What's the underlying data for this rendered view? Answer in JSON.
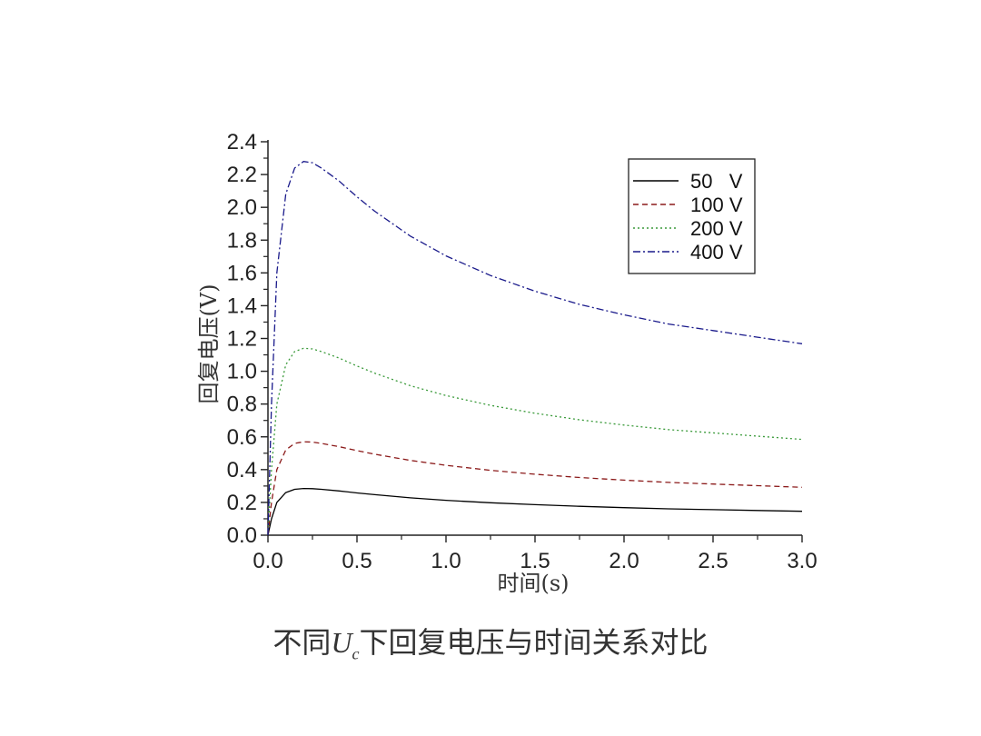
{
  "caption": {
    "prefix": "不同",
    "var_main": "U",
    "var_sub": "c",
    "suffix": "下回复电压与时间关系对比"
  },
  "chart_data": {
    "type": "line",
    "title": "",
    "xlabel": "时间(s)",
    "ylabel": "回复电压(V)",
    "xlim": [
      0,
      3.0
    ],
    "ylim": [
      0,
      2.4
    ],
    "x_ticks": [
      "0.0",
      "0.5",
      "1.0",
      "1.5",
      "2.0",
      "2.5",
      "3.0"
    ],
    "y_ticks": [
      "0.0",
      "0.2",
      "0.4",
      "0.6",
      "0.8",
      "1.0",
      "1.2",
      "1.4",
      "1.6",
      "1.8",
      "2.0",
      "2.2",
      "2.4"
    ],
    "grid": false,
    "legend_position": "top-right",
    "x": [
      0,
      0.02,
      0.05,
      0.1,
      0.15,
      0.2,
      0.25,
      0.3,
      0.4,
      0.5,
      0.6,
      0.8,
      1.0,
      1.25,
      1.5,
      1.75,
      2.0,
      2.25,
      2.5,
      2.75,
      3.0
    ],
    "series": [
      {
        "name": "50   V",
        "color": "#000000",
        "dash": "solid",
        "values": [
          0,
          0.1,
          0.2,
          0.26,
          0.28,
          0.285,
          0.284,
          0.28,
          0.27,
          0.258,
          0.247,
          0.228,
          0.213,
          0.198,
          0.186,
          0.176,
          0.168,
          0.161,
          0.156,
          0.151,
          0.146
        ]
      },
      {
        "name": "100 V",
        "color": "#8b1a1a",
        "dash": "dashed",
        "values": [
          0,
          0.2,
          0.4,
          0.52,
          0.56,
          0.57,
          0.568,
          0.56,
          0.54,
          0.516,
          0.494,
          0.456,
          0.426,
          0.396,
          0.372,
          0.352,
          0.336,
          0.322,
          0.312,
          0.302,
          0.292
        ]
      },
      {
        "name": "200 V",
        "color": "#3a9a3a",
        "dash": "dotted",
        "values": [
          0,
          0.4,
          0.8,
          1.04,
          1.12,
          1.14,
          1.136,
          1.12,
          1.08,
          1.032,
          0.988,
          0.912,
          0.852,
          0.792,
          0.744,
          0.704,
          0.672,
          0.644,
          0.624,
          0.604,
          0.584
        ]
      },
      {
        "name": "400 V",
        "color": "#1a1a8b",
        "dash": "dashdot",
        "values": [
          0,
          0.8,
          1.6,
          2.08,
          2.24,
          2.28,
          2.272,
          2.24,
          2.16,
          2.064,
          1.976,
          1.824,
          1.704,
          1.584,
          1.488,
          1.408,
          1.344,
          1.288,
          1.248,
          1.208,
          1.168
        ]
      }
    ]
  }
}
